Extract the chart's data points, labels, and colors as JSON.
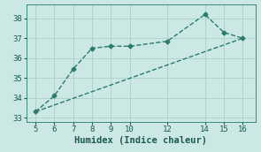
{
  "xlabel": "Humidex (Indice chaleur)",
  "background_color": "#cce8e4",
  "grid_color": "#afd4ce",
  "line_color": "#2a7a6e",
  "line1_x": [
    5,
    6,
    7,
    8,
    9,
    10,
    12,
    14,
    15,
    16
  ],
  "line1_y": [
    33.3,
    34.1,
    35.45,
    36.5,
    36.6,
    36.6,
    36.85,
    38.2,
    37.3,
    37.0
  ],
  "line2_x": [
    5,
    16
  ],
  "line2_y": [
    33.3,
    37.0
  ],
  "xlim": [
    4.5,
    16.7
  ],
  "ylim": [
    32.8,
    38.7
  ],
  "xticks": [
    5,
    6,
    7,
    8,
    9,
    10,
    12,
    14,
    15,
    16
  ],
  "yticks": [
    33,
    34,
    35,
    36,
    37,
    38
  ],
  "markersize": 2.5,
  "linewidth": 1.0,
  "fontsize_ticks": 6.5,
  "fontsize_label": 7.5
}
